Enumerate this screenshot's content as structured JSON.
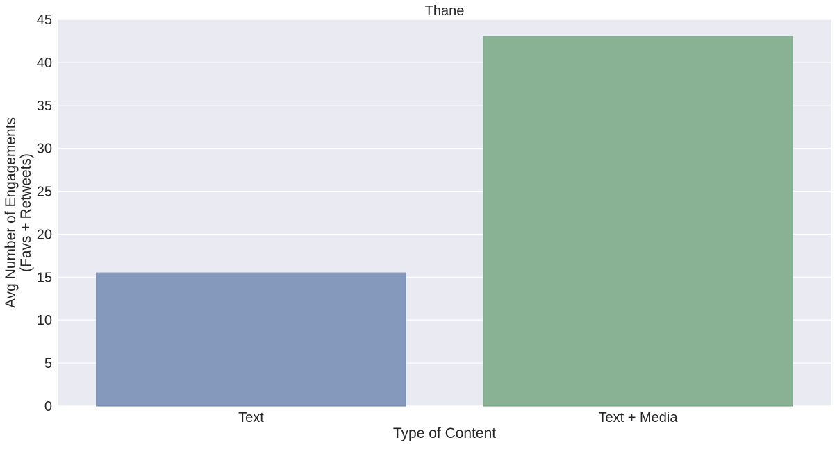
{
  "chart_data": {
    "type": "bar",
    "title": "Thane",
    "xlabel": "Type of Content",
    "ylabel_lines": [
      "Avg Number of Engagements",
      "(Favs + Retweets)"
    ],
    "categories": [
      "Text",
      "Text + Media"
    ],
    "values": [
      15.5,
      43.0
    ],
    "ylim": [
      0,
      45
    ],
    "yticks": [
      "0",
      "5",
      "10",
      "15",
      "20",
      "25",
      "30",
      "35",
      "40",
      "45"
    ],
    "grid": true,
    "colors": {
      "plot_background": "#eaeaf2",
      "grid": "#ffffff",
      "bars": [
        "#8499bb",
        "#88b293"
      ],
      "bar_edges": [
        "#6e80a3",
        "#6f9a7b"
      ]
    }
  }
}
